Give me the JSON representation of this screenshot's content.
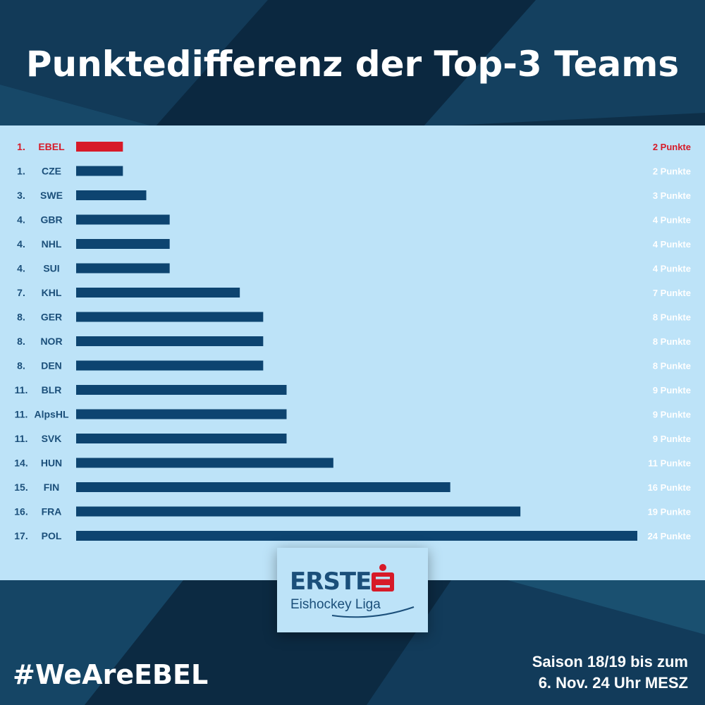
{
  "title": "Punktedifferenz der Top-3 Teams",
  "hashtag": "#WeAreEBEL",
  "footnote": {
    "line1": "Saison 18/19 bis zum",
    "line2": "6. Nov. 24 Uhr MESZ"
  },
  "logo": {
    "word": "ERSTE",
    "sub": "Eishockey Liga"
  },
  "colors": {
    "bar": "#0d4470",
    "highlight": "#d71a28",
    "label": "#1b4f7a",
    "value": "#ffffff",
    "panel": "#bde3f8"
  },
  "chart_data": {
    "type": "bar",
    "orientation": "horizontal",
    "unit": "Punkte",
    "xlim": [
      0,
      24
    ],
    "rows": [
      {
        "rank": "1.",
        "team": "EBEL",
        "value": 2,
        "label": "2 Punkte",
        "highlight": true
      },
      {
        "rank": "1.",
        "team": "CZE",
        "value": 2,
        "label": "2 Punkte"
      },
      {
        "rank": "3.",
        "team": "SWE",
        "value": 3,
        "label": "3 Punkte"
      },
      {
        "rank": "4.",
        "team": "GBR",
        "value": 4,
        "label": "4 Punkte"
      },
      {
        "rank": "4.",
        "team": "NHL",
        "value": 4,
        "label": "4 Punkte"
      },
      {
        "rank": "4.",
        "team": "SUI",
        "value": 4,
        "label": "4 Punkte"
      },
      {
        "rank": "7.",
        "team": "KHL",
        "value": 7,
        "label": "7 Punkte"
      },
      {
        "rank": "8.",
        "team": "GER",
        "value": 8,
        "label": "8 Punkte"
      },
      {
        "rank": "8.",
        "team": "NOR",
        "value": 8,
        "label": "8 Punkte"
      },
      {
        "rank": "8.",
        "team": "DEN",
        "value": 8,
        "label": "8 Punkte"
      },
      {
        "rank": "11.",
        "team": "BLR",
        "value": 9,
        "label": "9 Punkte"
      },
      {
        "rank": "11.",
        "team": "AlpsHL",
        "value": 9,
        "label": "9 Punkte"
      },
      {
        "rank": "11.",
        "team": "SVK",
        "value": 9,
        "label": "9 Punkte"
      },
      {
        "rank": "14.",
        "team": "HUN",
        "value": 11,
        "label": "11 Punkte"
      },
      {
        "rank": "15.",
        "team": "FIN",
        "value": 16,
        "label": "16 Punkte"
      },
      {
        "rank": "16.",
        "team": "FRA",
        "value": 19,
        "label": "19 Punkte"
      },
      {
        "rank": "17.",
        "team": "POL",
        "value": 24,
        "label": "24 Punkte"
      }
    ]
  }
}
